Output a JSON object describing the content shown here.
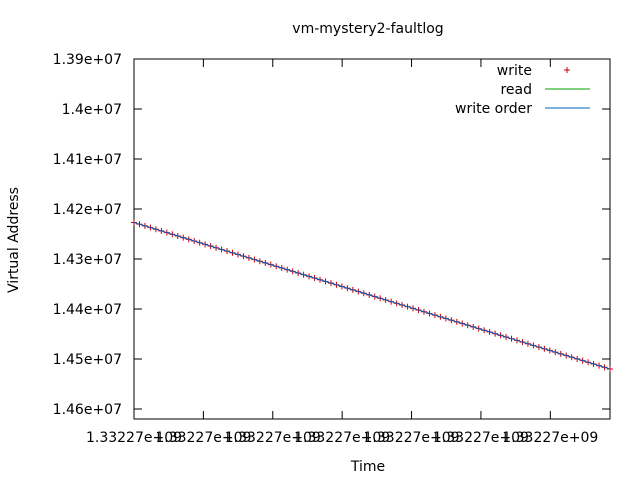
{
  "chart_data": {
    "type": "line",
    "title": "vm-mystery2-faultlog",
    "xlabel": "Time",
    "ylabel": "Virtual Address",
    "ylim": [
      13900000,
      14620000
    ],
    "y_reversed": true,
    "y_ticks": [
      13900000,
      14000000,
      14100000,
      14200000,
      14300000,
      14400000,
      14500000,
      14600000
    ],
    "y_tick_labels": [
      "1.39e+07",
      "1.4e+07",
      "1.41e+07",
      "1.42e+07",
      "1.43e+07",
      "1.44e+07",
      "1.45e+07",
      "1.46e+07"
    ],
    "x_ticks": [
      0,
      1,
      2,
      3,
      4,
      5,
      6
    ],
    "x_tick_labels": [
      "1.33227e+09",
      "1.33227e+09",
      "1.33227e+09",
      "1.33227e+09",
      "1.33227e+09",
      "1.33227e+09",
      "1.33227e+09"
    ],
    "xlim": [
      0,
      6.86
    ],
    "grid": false,
    "legend_position": "top-right",
    "series": [
      {
        "name": "write",
        "style": "points",
        "marker": "+",
        "color": "#cc0000",
        "x_range": [
          0,
          6.86
        ],
        "y_range": [
          14227000,
          14520000
        ],
        "count": 88
      },
      {
        "name": "read",
        "style": "line",
        "color": "#00a000",
        "x": [],
        "y": []
      },
      {
        "name": "write order",
        "style": "line",
        "color": "#0060c0",
        "x": [
          0,
          6.86
        ],
        "y": [
          14227000,
          14520000
        ]
      }
    ]
  }
}
